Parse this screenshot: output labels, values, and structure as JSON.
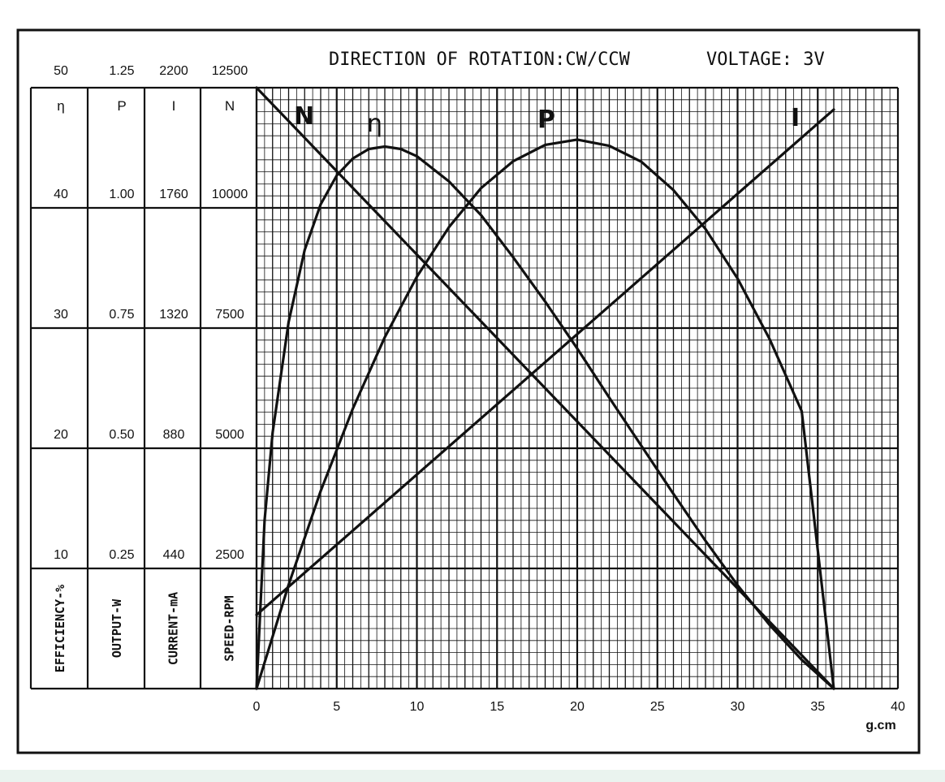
{
  "chart_data": {
    "type": "line",
    "title": "DIRECTION OF ROTATION:CW/CCW",
    "subtitle": "VOLTAGE: 3V",
    "xlabel": "g.cm",
    "xlim": [
      0,
      40
    ],
    "x_ticks": [
      "0",
      "5",
      "10",
      "15",
      "20",
      "25",
      "30",
      "35",
      "40"
    ],
    "grid": true,
    "axes": [
      {
        "key": "eta",
        "symbol": "η",
        "label": "EFFICIENCY-%",
        "max": 50,
        "ticks": [
          "50",
          "40",
          "30",
          "20",
          "10"
        ]
      },
      {
        "key": "P",
        "symbol": "P",
        "label": "OUTPUT-W",
        "max": 1.25,
        "ticks": [
          "1.25",
          "1.00",
          "0.75",
          "0.50",
          "0.25"
        ]
      },
      {
        "key": "I",
        "symbol": "I",
        "label": "CURRENT-mA",
        "max": 2200,
        "ticks": [
          "2200",
          "1760",
          "1320",
          "880",
          "440"
        ]
      },
      {
        "key": "N",
        "symbol": "N",
        "label": "SPEED-RPM",
        "max": 12500,
        "ticks": [
          "12500",
          "10000",
          "7500",
          "5000",
          "2500"
        ]
      }
    ],
    "series": [
      {
        "name": "N",
        "axis": "N",
        "x": [
          0,
          36
        ],
        "y": [
          12500,
          0
        ]
      },
      {
        "name": "η",
        "axis": "eta",
        "x": [
          0,
          0.5,
          1,
          2,
          3,
          4,
          5,
          6,
          7,
          8,
          9,
          10,
          12,
          14,
          16,
          18,
          20,
          22,
          24,
          26,
          28,
          30,
          32,
          34,
          35,
          36
        ],
        "y": [
          0,
          14,
          21.3,
          30.5,
          36.5,
          40.3,
          42.7,
          44.1,
          44.9,
          45.1,
          44.9,
          44.3,
          42.2,
          39.4,
          35.9,
          32.2,
          28.3,
          24.2,
          20.2,
          16.2,
          12.3,
          8.6,
          5.3,
          2.4,
          1.2,
          0
        ]
      },
      {
        "name": "P",
        "axis": "P",
        "x": [
          0,
          2,
          4,
          6,
          8,
          10,
          12,
          14,
          16,
          18,
          20,
          22,
          24,
          26,
          28,
          30,
          32,
          34,
          36
        ],
        "y": [
          0,
          0.216,
          0.411,
          0.582,
          0.731,
          0.857,
          0.96,
          1.041,
          1.097,
          1.131,
          1.142,
          1.129,
          1.096,
          1.037,
          0.956,
          0.853,
          0.727,
          0.577,
          0
        ]
      },
      {
        "name": "I",
        "axis": "I",
        "x": [
          0,
          36
        ],
        "y": [
          270,
          2120
        ]
      }
    ],
    "series_labels": [
      "N",
      "η",
      "P",
      "I"
    ],
    "colors": {
      "ink": "#111111",
      "grid": "#111111",
      "background": "#ffffff",
      "bottom_band": "#eaf3ef"
    }
  }
}
